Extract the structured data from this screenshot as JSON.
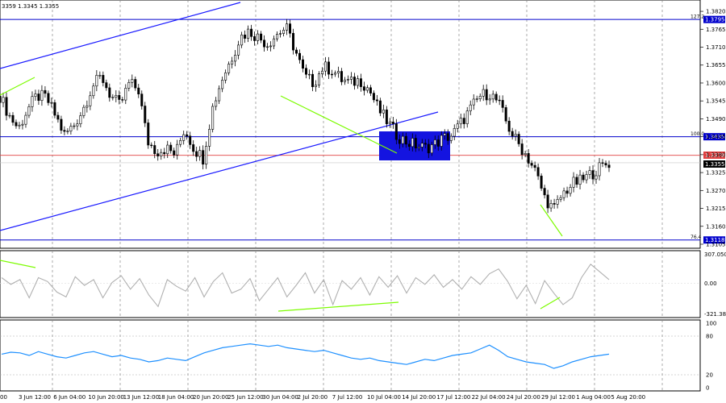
{
  "header": {
    "ohlc_text": "3359 1.3345 1.3355"
  },
  "chart_data": [
    {
      "type": "candlestick",
      "title": "",
      "xlabel": "",
      "ylabel": "",
      "ylim": [
        1.3105,
        1.3835
      ],
      "x_tick_labels": [
        "3 Jun 12:00",
        "6 Jun 04:00",
        "10 Jun 20:00",
        "13 Jun 12:00",
        "18 Jun 04:00",
        "20 Jun 20:00",
        "25 Jun 12:00",
        "30 Jun 04:00",
        "2 Jul 20:00",
        "7 Jul 12:00",
        "10 Jul 04:00",
        "14 Jul 20:00",
        "17 Jul 12:00",
        "22 Jul 04:00",
        "24 Jul 20:00",
        "29 Jul 12:00",
        "1 Aug 04:00",
        "5 Aug 20:00"
      ],
      "x_left_clip": "00",
      "y_tick_labels": [
        "1.3820",
        "1.3765",
        "1.3710",
        "1.3655",
        "1.3600",
        "1.3545",
        "1.3490",
        "1.3435",
        "1.3380",
        "1.3325",
        "1.3270",
        "1.3215",
        "1.3160",
        "1.3105"
      ],
      "price_series": [
        1.356,
        1.35,
        1.346,
        1.352,
        1.356,
        1.3555,
        1.35,
        1.344,
        1.347,
        1.352,
        1.359,
        1.362,
        1.356,
        1.353,
        1.36,
        1.358,
        1.342,
        1.339,
        1.34,
        1.338,
        1.346,
        1.34,
        1.337,
        1.352,
        1.361,
        1.367,
        1.374,
        1.376,
        1.374,
        1.372,
        1.375,
        1.377,
        1.37,
        1.362,
        1.36,
        1.365,
        1.364,
        1.361,
        1.36,
        1.361,
        1.358,
        1.352,
        1.348,
        1.344,
        1.342,
        1.341,
        1.34,
        1.341,
        1.343,
        1.344,
        1.348,
        1.352,
        1.356,
        1.357,
        1.354,
        1.347,
        1.342,
        1.338,
        1.333,
        1.325,
        1.321,
        1.326,
        1.329,
        1.33,
        1.332,
        1.334,
        1.3355
      ],
      "levels": [
        {
          "label": "127.2",
          "value": "1.3795"
        },
        {
          "label": "100.0",
          "value": "1.3435"
        },
        {
          "label": "76.4",
          "value": "1.3118"
        }
      ],
      "current_price": "1.3355",
      "red_line_price": "1.3378",
      "colors": {
        "candle": "#000000",
        "channel": "#1a1aff",
        "level": "#0000cc",
        "red_line": "#e04040",
        "divergence": "#7cfc00",
        "box": "#1414e0"
      }
    },
    {
      "type": "line",
      "title": "",
      "ylim": [
        -321.389,
        307.0503
      ],
      "y_tick_labels": [
        "307.0503",
        "0.00",
        "-321.389"
      ],
      "values": [
        60,
        -10,
        40,
        -150,
        60,
        20,
        -90,
        -140,
        70,
        -20,
        40,
        -150,
        10,
        80,
        -60,
        50,
        -120,
        -240,
        40,
        -30,
        -80,
        60,
        -140,
        20,
        110,
        -100,
        -60,
        50,
        -180,
        -60,
        60,
        -140,
        -20,
        110,
        -100,
        40,
        -220,
        30,
        -60,
        60,
        -120,
        70,
        -40,
        80,
        -100,
        60,
        -10,
        90,
        -40,
        40,
        -60,
        70,
        -10,
        100,
        150,
        20,
        -160,
        -20,
        -210,
        30,
        -100,
        -220,
        -150,
        60,
        200,
        120,
        40
      ],
      "color": "#b0b0b0"
    },
    {
      "type": "line",
      "title": "",
      "ylim": [
        0,
        100
      ],
      "y_tick_labels": [
        "100",
        "80",
        "20",
        "0"
      ],
      "values": [
        52,
        55,
        54,
        50,
        56,
        52,
        48,
        46,
        50,
        54,
        56,
        52,
        48,
        50,
        46,
        44,
        40,
        42,
        46,
        44,
        42,
        48,
        54,
        58,
        62,
        64,
        66,
        68,
        66,
        64,
        66,
        62,
        60,
        58,
        56,
        58,
        54,
        50,
        46,
        44,
        46,
        42,
        40,
        38,
        36,
        40,
        44,
        42,
        46,
        50,
        52,
        54,
        60,
        66,
        58,
        48,
        44,
        40,
        38,
        36,
        30,
        34,
        40,
        44,
        48,
        50,
        52
      ],
      "color": "#1e90ff"
    }
  ]
}
